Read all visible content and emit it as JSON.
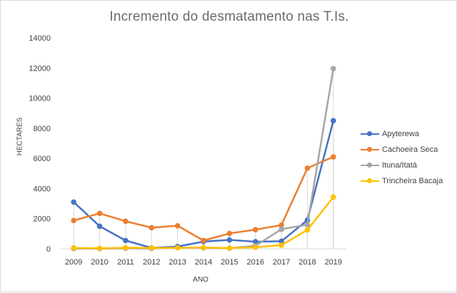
{
  "chart_data": {
    "type": "line",
    "title": "Incremento do desmatamento  nas T.Is.",
    "xlabel": "ANO",
    "ylabel": "HECTARES",
    "categories": [
      "2009",
      "2010",
      "2011",
      "2012",
      "2013",
      "2014",
      "2015",
      "2016",
      "2017",
      "2018",
      "2019"
    ],
    "ylim": [
      0,
      14000
    ],
    "yticks": [
      0,
      2000,
      4000,
      6000,
      8000,
      10000,
      12000,
      14000
    ],
    "ytick_labels": [
      "0",
      "2000",
      "4000",
      "6000",
      "8000",
      "10000",
      "12000",
      "14000"
    ],
    "grid": false,
    "legend_position": "right",
    "series": [
      {
        "name": "Apyterewa",
        "color": "#4472c4",
        "values": [
          3100,
          1500,
          550,
          60,
          150,
          480,
          590,
          470,
          500,
          1900,
          8500
        ]
      },
      {
        "name": "Cachoeira Seca",
        "color": "#ed7d31",
        "values": [
          1880,
          2350,
          1830,
          1400,
          1530,
          550,
          1020,
          1270,
          1570,
          5350,
          6100
        ]
      },
      {
        "name": "Ituna/Itatá",
        "color": "#a5a5a5",
        "values": [
          20,
          10,
          30,
          20,
          80,
          60,
          40,
          200,
          1300,
          1600,
          11950
        ]
      },
      {
        "name": "Trincheira Bacaja",
        "color": "#ffc000",
        "values": [
          60,
          30,
          70,
          60,
          60,
          80,
          50,
          100,
          240,
          1250,
          3430
        ]
      }
    ]
  }
}
